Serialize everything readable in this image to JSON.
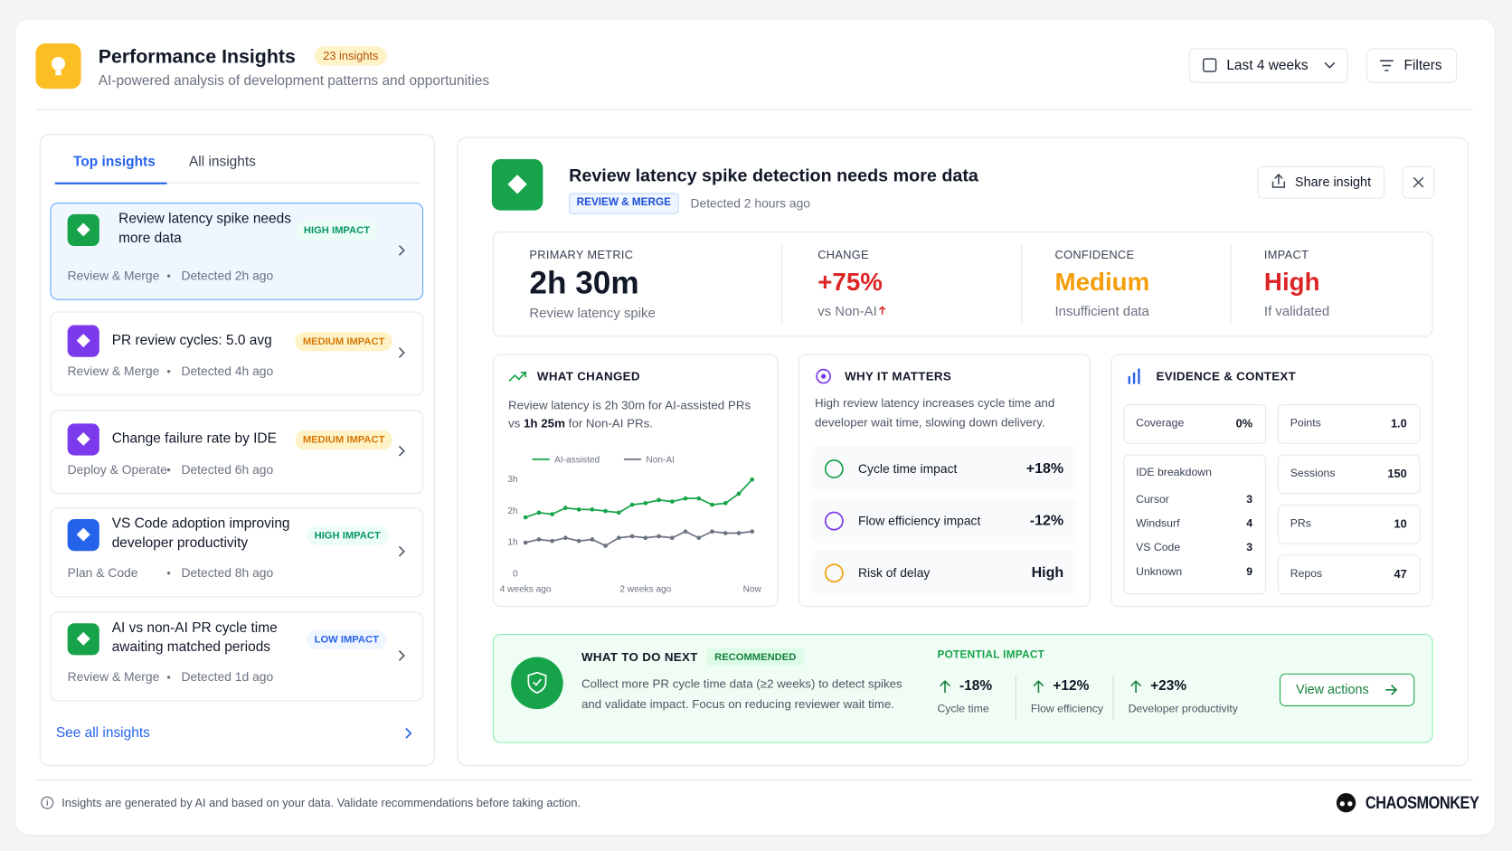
{
  "header": {
    "title": "Performance Insights",
    "badge": "23 insights",
    "subtitle": "AI-powered analysis of development patterns and opportunities",
    "range": "Last 4 weeks",
    "filters": "Filters"
  },
  "tabs": [
    "Top insights",
    "All insights"
  ],
  "insights": [
    {
      "title": "Review latency spike needs more data",
      "impact": "HIGH IMPACT",
      "category": "Review & Merge",
      "detected": "Detected 2h ago",
      "color": "#16a34a",
      "badge_bg": "#ecfdf5",
      "badge_color": "#059669"
    },
    {
      "title": "PR review cycles: 5.0 avg",
      "impact": "MEDIUM IMPACT",
      "category": "Review & Merge",
      "detected": "Detected 4h ago",
      "color": "#7c3aed",
      "badge_bg": "#fef3c7",
      "badge_color": "#d97706"
    },
    {
      "title": "Change failure rate by IDE",
      "impact": "MEDIUM IMPACT",
      "category": "Deploy & Operate",
      "detected": "Detected 6h ago",
      "color": "#7c3aed",
      "badge_bg": "#fef3c7",
      "badge_color": "#d97706"
    },
    {
      "title": "VS Code adoption improving developer productivity",
      "impact": "HIGH IMPACT",
      "category": "Plan & Code",
      "detected": "Detected 8h ago",
      "color": "#2563eb",
      "badge_bg": "#ecfdf5",
      "badge_color": "#059669"
    },
    {
      "title": "AI vs non-AI PR cycle time awaiting matched periods",
      "impact": "LOW IMPACT",
      "category": "Review & Merge",
      "detected": "Detected 1d ago",
      "color": "#16a34a",
      "badge_bg": "#eff6ff",
      "badge_color": "#2563eb"
    }
  ],
  "see_all": "See all insights",
  "detail": {
    "title": "Review latency spike detection needs more data",
    "tag": "REVIEW & MERGE",
    "detected": "Detected 2 hours ago",
    "share": "Share insight"
  },
  "metrics": [
    {
      "label": "PRIMARY METRIC",
      "value": "2h 30m",
      "sub": "Review latency spike",
      "color": "#111827"
    },
    {
      "label": "CHANGE",
      "value": "+75%",
      "sub": "vs Non-AI",
      "color": "#dc2626"
    },
    {
      "label": "CONFIDENCE",
      "value": "Medium",
      "sub": "Insufficient data",
      "color": "#f59e0b"
    },
    {
      "label": "IMPACT",
      "value": "High",
      "sub": "If validated",
      "color": "#dc2626"
    }
  ],
  "what_changed": {
    "title": "WHAT CHANGED",
    "text": "Review latency is 2h 30m for AI-assisted PRs",
    "text_vs": "vs",
    "bold": "1h 25m",
    "text_end": "for Non-AI PRs."
  },
  "chart_data": {
    "type": "line",
    "categories": [
      "4 weeks ago",
      null,
      null,
      null,
      null,
      null,
      null,
      null,
      null,
      "2 weeks ago",
      null,
      null,
      null,
      null,
      null,
      null,
      null,
      "Now"
    ],
    "series": [
      {
        "name": "AI-assisted",
        "color": "#16a34a",
        "values": [
          1.8,
          1.95,
          1.9,
          2.1,
          2.05,
          2.05,
          2.0,
          1.95,
          2.2,
          2.25,
          2.35,
          2.3,
          2.4,
          2.4,
          2.2,
          2.25,
          2.55,
          3.0
        ]
      },
      {
        "name": "Non-AI",
        "color": "#6b7280",
        "values": [
          1.0,
          1.1,
          1.05,
          1.15,
          1.05,
          1.1,
          0.9,
          1.15,
          1.2,
          1.15,
          1.2,
          1.15,
          1.35,
          1.15,
          1.35,
          1.3,
          1.3,
          1.35
        ]
      }
    ],
    "ylim": [
      0,
      3
    ],
    "yticks": [
      0,
      {
        "value": 1,
        "label": "1h"
      },
      {
        "value": 2,
        "label": "2h"
      },
      {
        "value": 3,
        "label": "3h"
      }
    ]
  },
  "why": {
    "title": "WHY IT MATTERS",
    "text": "High review latency increases cycle time and developer wait time, slowing down delivery.",
    "items": [
      {
        "label": "Cycle time impact",
        "value": "+18%"
      },
      {
        "label": "Flow efficiency impact",
        "value": "-12%"
      },
      {
        "label": "Risk of delay",
        "value": "High"
      }
    ]
  },
  "evidence": {
    "title": "EVIDENCE & CONTEXT",
    "coverage": {
      "label": "Coverage",
      "value": "0%"
    },
    "points": {
      "label": "Points",
      "value": "1.0"
    },
    "ide": {
      "title": "IDE breakdown",
      "rows": [
        [
          "Cursor",
          "3"
        ],
        [
          "Windsurf",
          "4"
        ],
        [
          "VS Code",
          "3"
        ],
        [
          "Unknown",
          "9"
        ]
      ]
    },
    "sessions": {
      "label": "Sessions",
      "value": "150"
    },
    "prs": {
      "label": "PRs",
      "value": "10"
    },
    "repos": {
      "label": "Repos",
      "value": "47"
    }
  },
  "next": {
    "title": "WHAT TO DO NEXT",
    "badge": "RECOMMENDED",
    "text": "Collect more PR cycle time data (≥2 weeks) to detect spikes and validate impact. Focus on reducing reviewer wait time.",
    "impact_title": "POTENTIAL IMPACT",
    "impacts": [
      {
        "value": "-18%",
        "label": "Cycle time"
      },
      {
        "value": "+12%",
        "label": "Flow efficiency"
      },
      {
        "value": "+23%",
        "label": "Developer productivity"
      }
    ],
    "button": "View actions"
  },
  "footer": {
    "note": "Insights are generated by AI and based on your data. Validate recommendations before taking action.",
    "brand": "CHAOSMONKEY"
  }
}
